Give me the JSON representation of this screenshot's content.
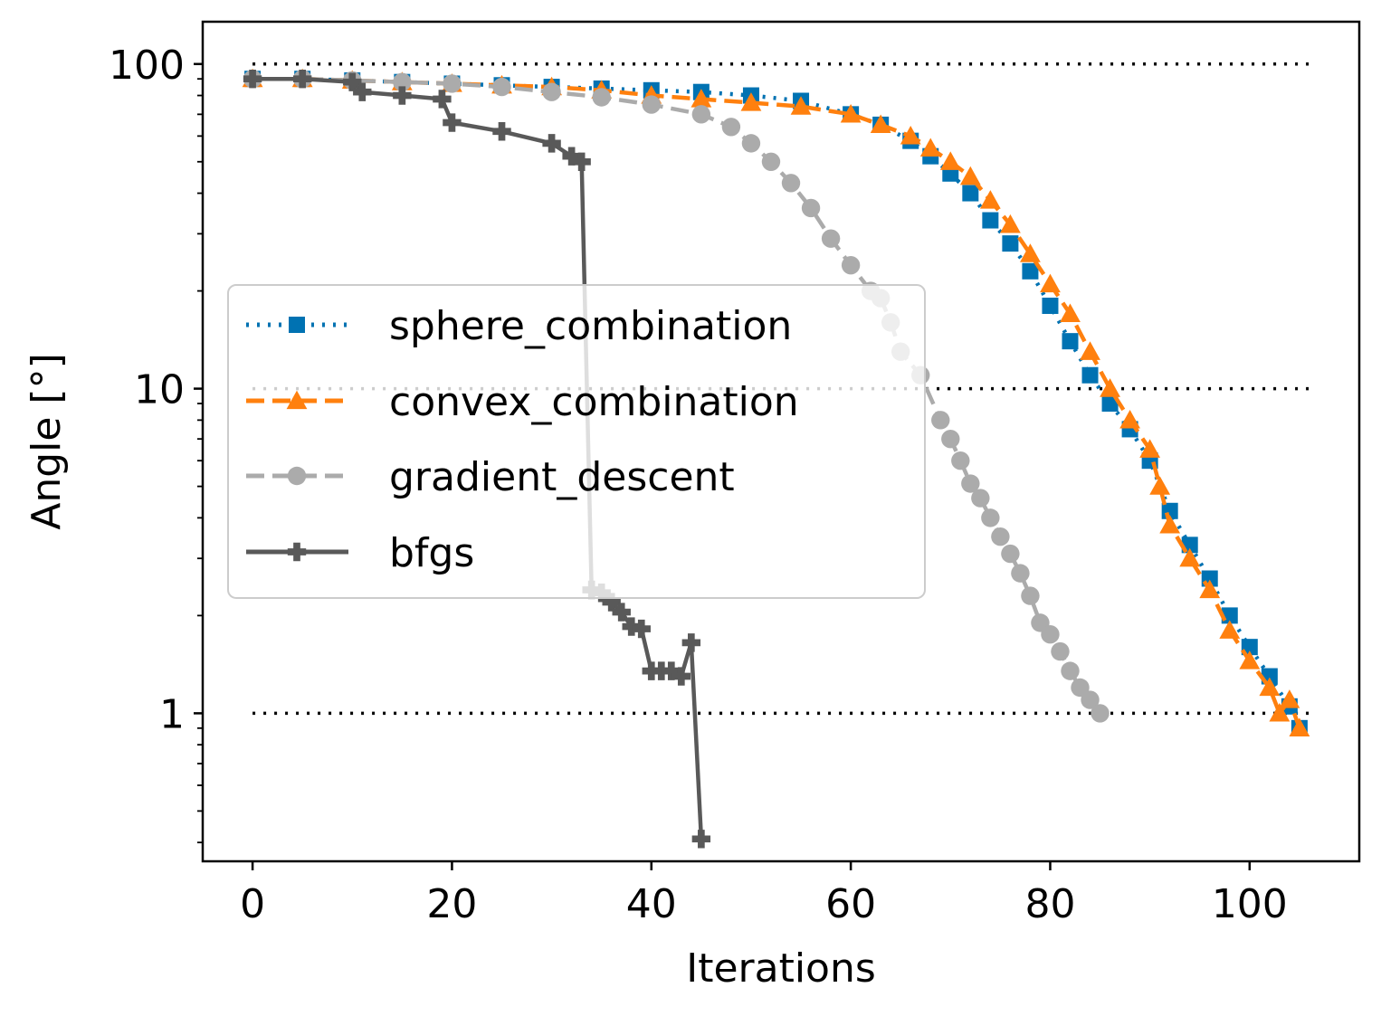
{
  "chart_data": {
    "type": "line",
    "title": "",
    "xlabel": "Iterations",
    "ylabel": "Angle [°]",
    "yscale": "log",
    "xlim": [
      -5,
      111
    ],
    "ylim": [
      0.35,
      135
    ],
    "xticks": [
      0,
      20,
      40,
      60,
      80,
      100
    ],
    "xtick_labels": [
      "0",
      "20",
      "40",
      "60",
      "80",
      "100"
    ],
    "yticks": [
      1,
      10,
      100
    ],
    "ytick_labels": [
      "1",
      "10",
      "100"
    ],
    "grid": false,
    "legend_position": "center-left",
    "reference_lines": [
      {
        "y": 100,
        "x_start": 0,
        "x_end": 106,
        "style": "dotted",
        "color": "#000000"
      },
      {
        "y": 10,
        "x_start": 0,
        "x_end": 106,
        "style": "dotted",
        "color": "#000000"
      },
      {
        "y": 1,
        "x_start": 0,
        "x_end": 106,
        "style": "dotted",
        "color": "#000000"
      }
    ],
    "series": [
      {
        "name": "sphere_combination",
        "color": "#0072B2",
        "line_style": "dotted",
        "marker": "square",
        "x": [
          0,
          5,
          10,
          15,
          20,
          25,
          30,
          35,
          40,
          45,
          50,
          55,
          60,
          63,
          66,
          68,
          70,
          72,
          74,
          76,
          78,
          80,
          82,
          84,
          86,
          88,
          90,
          92,
          94,
          96,
          98,
          100,
          102,
          104,
          105
        ],
        "values": [
          90,
          90,
          89,
          88,
          87,
          86,
          85,
          84,
          83,
          82,
          80,
          77,
          70,
          65,
          58,
          52,
          46,
          40,
          33,
          28,
          23,
          18,
          14,
          11,
          9,
          7.5,
          6,
          4.2,
          3.3,
          2.6,
          2.0,
          1.6,
          1.3,
          1.05,
          0.9
        ]
      },
      {
        "name": "convex_combination",
        "color": "#FF800E",
        "line_style": "dashed",
        "marker": "triangle",
        "x": [
          0,
          5,
          10,
          15,
          20,
          25,
          30,
          35,
          40,
          45,
          50,
          55,
          60,
          63,
          66,
          68,
          70,
          72,
          74,
          76,
          78,
          80,
          82,
          84,
          86,
          88,
          90,
          91,
          92,
          94,
          96,
          98,
          100,
          102,
          103,
          104,
          105
        ],
        "values": [
          90,
          90,
          89,
          88,
          87,
          86,
          85,
          83,
          80,
          78,
          76,
          74,
          70,
          65,
          60,
          55,
          50,
          45,
          38,
          32,
          26,
          21,
          17,
          13,
          10,
          8,
          6.5,
          5.0,
          3.8,
          3.0,
          2.4,
          1.8,
          1.45,
          1.2,
          1.0,
          1.1,
          0.9
        ]
      },
      {
        "name": "gradient_descent",
        "color": "#ABABAB",
        "line_style": "dashed",
        "marker": "circle",
        "x": [
          0,
          5,
          10,
          15,
          20,
          25,
          30,
          35,
          40,
          45,
          48,
          50,
          52,
          54,
          56,
          58,
          60,
          62,
          63,
          64,
          65,
          67,
          69,
          70,
          71,
          72,
          73,
          74,
          75,
          76,
          77,
          78,
          79,
          80,
          81,
          82,
          83,
          84,
          85
        ],
        "values": [
          90,
          90,
          89,
          88,
          87,
          85,
          82,
          79,
          75,
          70,
          64,
          57,
          50,
          43,
          36,
          29,
          24,
          20,
          19,
          16,
          13,
          11,
          8,
          7,
          6,
          5.1,
          4.6,
          4.0,
          3.5,
          3.1,
          2.7,
          2.3,
          1.9,
          1.75,
          1.55,
          1.35,
          1.2,
          1.1,
          1.0
        ]
      },
      {
        "name": "bfgs",
        "color": "#595959",
        "line_style": "solid",
        "marker": "plus",
        "x": [
          0,
          5,
          10,
          11,
          15,
          19,
          20,
          25,
          30,
          32,
          33,
          34,
          35,
          36,
          37,
          38,
          39,
          40,
          41,
          42,
          43,
          44,
          45
        ],
        "values": [
          90,
          90,
          88,
          82,
          80,
          78,
          66,
          62,
          57,
          52,
          50,
          2.4,
          2.35,
          2.2,
          2.05,
          1.85,
          1.82,
          1.35,
          1.35,
          1.35,
          1.3,
          1.65,
          0.41
        ]
      }
    ]
  }
}
